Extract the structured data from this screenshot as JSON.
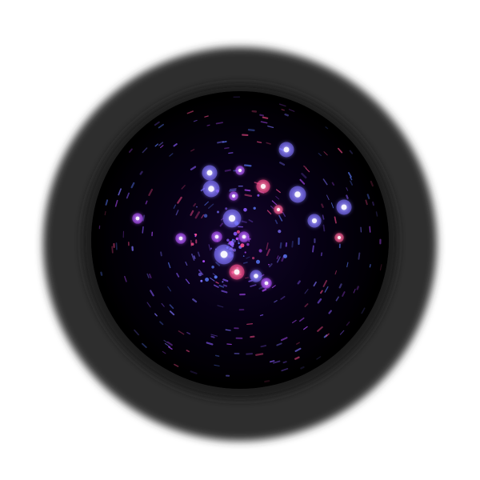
{
  "image": {
    "subject": "circular-telescope-view",
    "colors": {
      "background": "#ffffff",
      "outer_ring": "#2f2f2f",
      "inner_ring": "#1a1a1a",
      "sky": "#02000a",
      "star_blue": "#7f73ff",
      "star_violet": "#b14dff",
      "star_pink": "#ff4f8f",
      "star_core": "#ffffff"
    },
    "icons": [
      "telescope-ring-icon",
      "star-cluster-icon"
    ]
  }
}
